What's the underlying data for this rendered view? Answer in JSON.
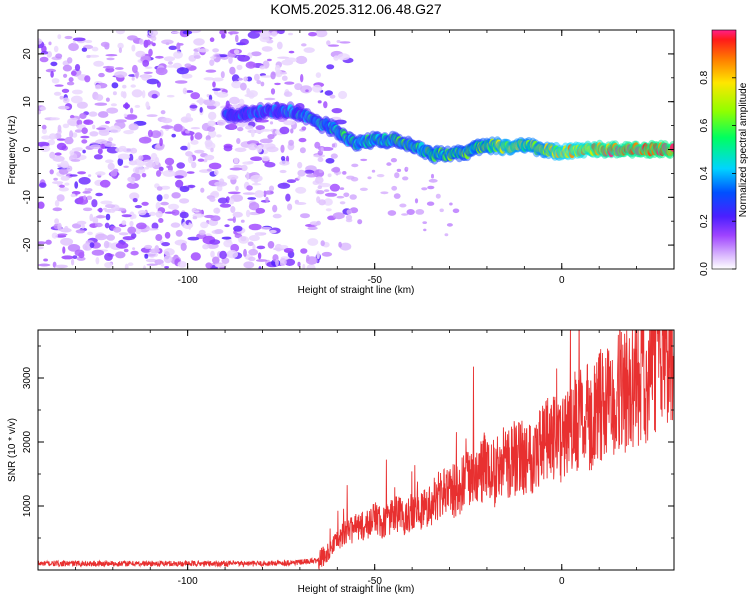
{
  "title": "KOM5.2025.312.06.48.G27",
  "chart_data": [
    {
      "type": "heatmap",
      "xlabel": "Height of straight line (km)",
      "ylabel": "Frequency (Hz)",
      "xlim": [
        -140,
        30
      ],
      "ylim": [
        -25,
        25
      ],
      "x_ticks": [
        -100,
        -50,
        0
      ],
      "y_ticks": [
        -20,
        -10,
        0,
        10,
        20
      ],
      "colorbar": {
        "label": "Normalized spectral amplitude",
        "range": [
          0,
          1
        ],
        "ticks": [
          0.0,
          0.2,
          0.4,
          0.6,
          0.8
        ]
      },
      "ridge": {
        "x": [
          -90,
          -80,
          -72,
          -66,
          -60,
          -55,
          -50,
          -45,
          -40,
          -35,
          -30,
          -25,
          -20,
          -15,
          -10,
          -5,
          0,
          5,
          10,
          20,
          30
        ],
        "frequency": [
          7,
          8,
          8,
          6,
          4,
          1,
          2,
          2,
          1,
          -1,
          -1,
          -0.5,
          1,
          0.5,
          1,
          0,
          -0.5,
          0,
          0,
          0,
          0
        ],
        "amplitude": [
          0.25,
          0.3,
          0.38,
          0.42,
          0.45,
          0.48,
          0.5,
          0.5,
          0.5,
          0.55,
          0.55,
          0.55,
          0.6,
          0.7,
          0.65,
          0.65,
          0.75,
          0.8,
          0.88,
          0.92,
          0.95
        ]
      },
      "noise_region_x": [
        -140,
        -65
      ]
    },
    {
      "type": "line",
      "xlabel": "Height of straight line (km)",
      "ylabel": "SNR (10 * v/v)",
      "xlim": [
        -140,
        30
      ],
      "ylim": [
        0,
        3750
      ],
      "x_ticks": [
        -100,
        -50,
        0
      ],
      "y_ticks": [
        1000,
        2000,
        3000
      ],
      "series": [
        {
          "color": "#e83030",
          "x": [
            -140,
            -120,
            -100,
            -80,
            -70,
            -65,
            -62,
            -58,
            -55,
            -52,
            -50,
            -48,
            -45,
            -42,
            -40,
            -38,
            -35,
            -32,
            -30,
            -28,
            -25,
            -22,
            -20,
            -18,
            -15,
            -12,
            -10,
            -8,
            -5,
            -2,
            0,
            3,
            5,
            8,
            10,
            13,
            15,
            18,
            20,
            23,
            25,
            28,
            30
          ],
          "y": [
            100,
            100,
            100,
            100,
            120,
            150,
            300,
            600,
            650,
            700,
            850,
            700,
            900,
            800,
            950,
            900,
            1050,
            1200,
            1250,
            1250,
            1400,
            1450,
            1700,
            1500,
            1700,
            1750,
            1800,
            1800,
            2000,
            2050,
            2000,
            2150,
            2350,
            2400,
            2550,
            2600,
            2750,
            2800,
            2950,
            3000,
            3200,
            3350,
            3500
          ]
        }
      ]
    }
  ]
}
